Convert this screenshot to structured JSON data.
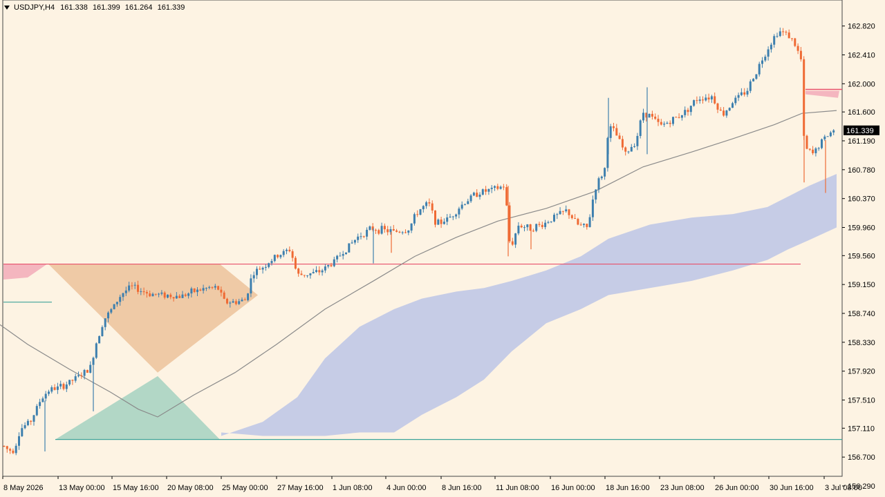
{
  "header": {
    "symbol_tf": "USDJPY,H4",
    "open": "161.338",
    "high": "161.399",
    "low": "161.264",
    "close": "161.339"
  },
  "colors": {
    "background": "#fdf3e3",
    "bull": "#3d7fae",
    "bear": "#ef6a34",
    "ma": "#8a8a8a",
    "cloud": "#c6cce6",
    "resistance_zone": "#f4b6bf",
    "red_line": "#e84f6a",
    "orange_zone": "#efcaa6",
    "green_zone": "#b2d7c6",
    "teal_line": "#3ba39a",
    "price_label_bg": "#000000",
    "price_label_fg": "#ffffff"
  },
  "chart_data": {
    "type": "candlestick",
    "symbol": "USDJPY",
    "timeframe": "H4",
    "y_axis": {
      "ticks": [
        "162.820",
        "162.410",
        "162.000",
        "161.600",
        "161.190",
        "160.780",
        "160.370",
        "159.960",
        "159.560",
        "159.150",
        "158.740",
        "158.330",
        "157.920",
        "157.510",
        "157.110",
        "156.700",
        "156.290"
      ],
      "range": [
        156.29,
        163.15
      ]
    },
    "x_axis": {
      "labels": [
        "8 May 2026",
        "13 May 00:00",
        "15 May 16:00",
        "20 May 08:00",
        "25 May 00:00",
        "27 May 16:00",
        "1 Jun 08:00",
        "4 Jun 00:00",
        "8 Jun 16:00",
        "11 Jun 08:00",
        "16 Jun 00:00",
        "18 Jun 16:00",
        "23 Jun 08:00",
        "26 Jun 00:00",
        "30 Jun 16:00",
        "3 Jul 08:00"
      ]
    },
    "current_price": "161.339",
    "levels": {
      "resistance_line": 159.44,
      "support_line": 156.95
    },
    "ma_path": [
      [
        0,
        158.58
      ],
      [
        40,
        158.3
      ],
      [
        100,
        157.95
      ],
      [
        160,
        157.62
      ],
      [
        200,
        157.38
      ],
      [
        228,
        157.27
      ],
      [
        280,
        157.58
      ],
      [
        340,
        157.9
      ],
      [
        400,
        158.3
      ],
      [
        470,
        158.8
      ],
      [
        540,
        159.2
      ],
      [
        600,
        159.55
      ],
      [
        660,
        159.82
      ],
      [
        720,
        160.05
      ],
      [
        790,
        160.23
      ],
      [
        860,
        160.47
      ],
      [
        930,
        160.82
      ],
      [
        1000,
        161.03
      ],
      [
        1060,
        161.22
      ],
      [
        1120,
        161.42
      ],
      [
        1160,
        161.58
      ],
      [
        1210,
        161.62
      ]
    ],
    "price_path": [
      [
        0,
        156.9
      ],
      [
        12,
        156.8
      ],
      [
        20,
        156.8
      ],
      [
        30,
        157.1
      ],
      [
        45,
        157.22
      ],
      [
        58,
        157.5
      ],
      [
        70,
        157.65
      ],
      [
        90,
        157.7
      ],
      [
        110,
        157.82
      ],
      [
        130,
        157.95
      ],
      [
        140,
        158.35
      ],
      [
        150,
        158.65
      ],
      [
        162,
        158.8
      ],
      [
        176,
        159.02
      ],
      [
        190,
        159.12
      ],
      [
        215,
        159.02
      ],
      [
        240,
        159.0
      ],
      [
        260,
        158.98
      ],
      [
        280,
        159.05
      ],
      [
        300,
        159.1
      ],
      [
        315,
        159.1
      ],
      [
        325,
        158.9
      ],
      [
        340,
        158.9
      ],
      [
        355,
        158.93
      ],
      [
        365,
        159.3
      ],
      [
        380,
        159.4
      ],
      [
        400,
        159.55
      ],
      [
        420,
        159.65
      ],
      [
        430,
        159.28
      ],
      [
        445,
        159.3
      ],
      [
        460,
        159.32
      ],
      [
        480,
        159.45
      ],
      [
        500,
        159.65
      ],
      [
        520,
        159.85
      ],
      [
        540,
        159.95
      ],
      [
        555,
        159.92
      ],
      [
        570,
        159.9
      ],
      [
        590,
        159.92
      ],
      [
        605,
        160.2
      ],
      [
        620,
        160.3
      ],
      [
        632,
        160.0
      ],
      [
        650,
        160.1
      ],
      [
        670,
        160.3
      ],
      [
        690,
        160.45
      ],
      [
        715,
        160.5
      ],
      [
        730,
        160.55
      ],
      [
        738,
        159.65
      ],
      [
        750,
        160.0
      ],
      [
        765,
        159.95
      ],
      [
        785,
        160.0
      ],
      [
        800,
        160.1
      ],
      [
        820,
        160.2
      ],
      [
        835,
        160.0
      ],
      [
        850,
        159.95
      ],
      [
        860,
        160.5
      ],
      [
        875,
        160.8
      ],
      [
        880,
        161.4
      ],
      [
        890,
        161.3
      ],
      [
        905,
        161.0
      ],
      [
        920,
        161.2
      ],
      [
        930,
        161.6
      ],
      [
        940,
        161.55
      ],
      [
        955,
        161.4
      ],
      [
        975,
        161.5
      ],
      [
        990,
        161.6
      ],
      [
        1010,
        161.8
      ],
      [
        1030,
        161.82
      ],
      [
        1045,
        161.55
      ],
      [
        1060,
        161.75
      ],
      [
        1080,
        161.9
      ],
      [
        1095,
        162.2
      ],
      [
        1110,
        162.5
      ],
      [
        1125,
        162.75
      ],
      [
        1140,
        162.7
      ],
      [
        1150,
        162.55
      ],
      [
        1160,
        162.3
      ],
      [
        1163,
        161.1
      ],
      [
        1175,
        161.0
      ],
      [
        1190,
        161.2
      ],
      [
        1200,
        161.3
      ],
      [
        1209,
        161.34
      ]
    ],
    "cloud_band": [
      [
        320,
        157.0,
        157.05
      ],
      [
        380,
        157.2,
        157.0
      ],
      [
        430,
        157.55,
        157.0
      ],
      [
        470,
        158.1,
        157.0
      ],
      [
        520,
        158.55,
        157.05
      ],
      [
        570,
        158.8,
        157.05
      ],
      [
        610,
        158.95,
        157.3
      ],
      [
        660,
        159.05,
        157.55
      ],
      [
        700,
        159.1,
        157.8
      ],
      [
        740,
        159.2,
        158.2
      ],
      [
        790,
        159.35,
        158.6
      ],
      [
        840,
        159.55,
        158.8
      ],
      [
        880,
        159.8,
        159.0
      ],
      [
        940,
        160.0,
        159.1
      ],
      [
        1000,
        160.1,
        159.2
      ],
      [
        1060,
        160.15,
        159.35
      ],
      [
        1110,
        160.25,
        159.5
      ],
      [
        1140,
        160.4,
        159.65
      ],
      [
        1170,
        160.55,
        159.78
      ],
      [
        1210,
        160.72,
        159.96
      ]
    ]
  }
}
